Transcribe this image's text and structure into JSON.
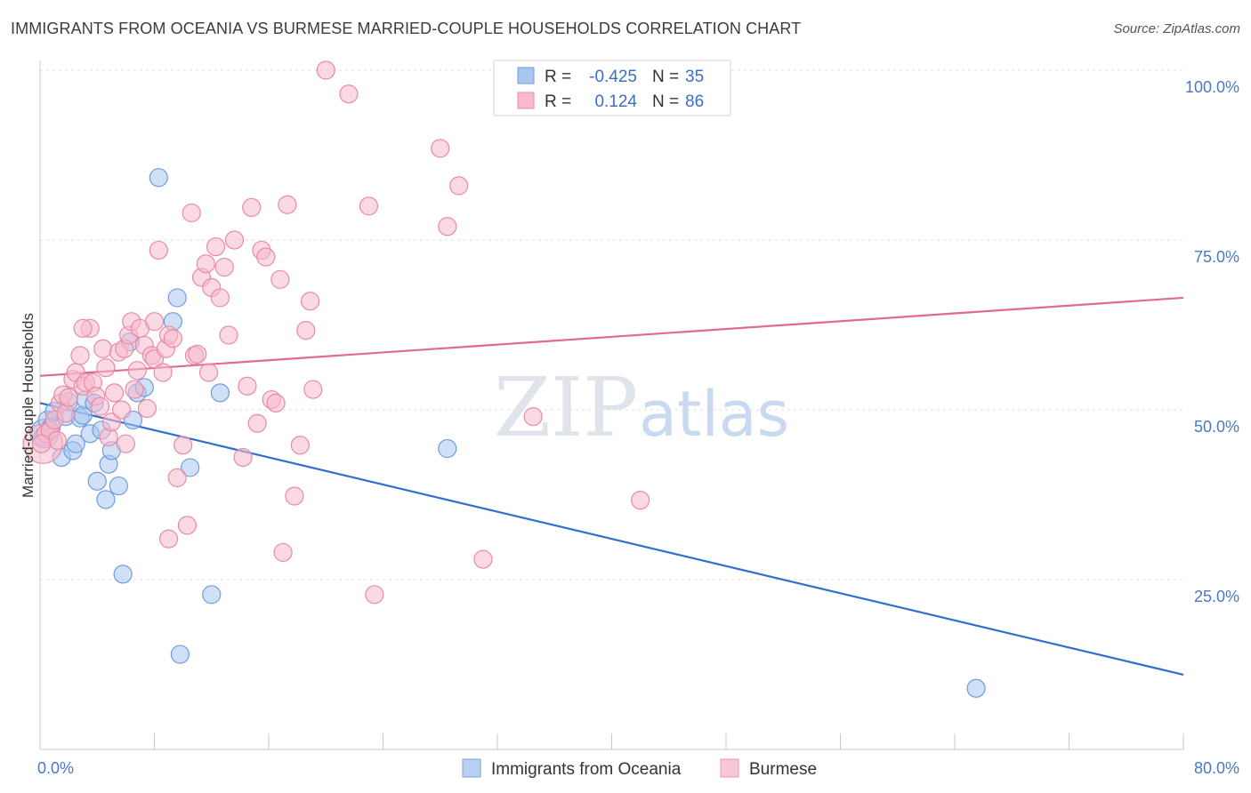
{
  "header": {
    "title": "IMMIGRANTS FROM OCEANIA VS BURMESE MARRIED-COUPLE HOUSEHOLDS CORRELATION CHART",
    "source": "Source: ZipAtlas.com"
  },
  "watermark": {
    "part1": "ZIP",
    "part2": "atlas"
  },
  "legend": {
    "rows": [
      {
        "r_label": "R =",
        "r_value": "-0.425",
        "n_label": "N =",
        "n_value": "35",
        "color": "#a9c6ef",
        "stroke": "#6f9be0"
      },
      {
        "r_label": "R =",
        "r_value": "0.124",
        "n_label": "N =",
        "n_value": "86",
        "color": "#f7b9cc",
        "stroke": "#e88aa6"
      }
    ]
  },
  "bottom_legend": {
    "items": [
      {
        "label": "Immigrants from Oceania",
        "color": "#b9d0f2",
        "stroke": "#7aa3e0"
      },
      {
        "label": "Burmese",
        "color": "#f9c8d6",
        "stroke": "#e899b0"
      }
    ]
  },
  "chart_data": {
    "type": "scatter",
    "title": "IMMIGRANTS FROM OCEANIA VS BURMESE MARRIED-COUPLE HOUSEHOLDS CORRELATION CHART",
    "xlabel": "",
    "ylabel": "Married-couple Households",
    "xlim": [
      0,
      80
    ],
    "ylim": [
      0,
      100
    ],
    "x_tick_labels": [
      "0.0%",
      "80.0%"
    ],
    "y_tick_labels": [
      "25.0%",
      "50.0%",
      "75.0%",
      "100.0%"
    ],
    "y_ticks": [
      25,
      50,
      75,
      100
    ],
    "grid": true,
    "legend_position": "top-center",
    "series": [
      {
        "name": "Immigrants from Oceania",
        "color": "#6f9be0",
        "fill": "#a9c6ef",
        "trend": {
          "x": [
            0,
            80
          ],
          "y": [
            51.0,
            11.0
          ],
          "color": "#2f6fd0"
        },
        "points": [
          [
            0.3,
            46.5
          ],
          [
            0.5,
            48.5
          ],
          [
            0.8,
            47.5
          ],
          [
            1.0,
            49.8
          ],
          [
            1.5,
            43.0
          ],
          [
            1.8,
            49.0
          ],
          [
            2.0,
            51.2
          ],
          [
            2.3,
            44.0
          ],
          [
            2.5,
            45.0
          ],
          [
            2.8,
            48.8
          ],
          [
            3.0,
            49.2
          ],
          [
            3.2,
            51.5
          ],
          [
            3.5,
            46.5
          ],
          [
            3.8,
            51.0
          ],
          [
            4.0,
            39.5
          ],
          [
            4.3,
            47.0
          ],
          [
            4.6,
            36.8
          ],
          [
            4.8,
            42.0
          ],
          [
            5.0,
            44.0
          ],
          [
            5.5,
            38.8
          ],
          [
            5.8,
            25.8
          ],
          [
            6.3,
            60.0
          ],
          [
            6.5,
            48.5
          ],
          [
            6.8,
            52.5
          ],
          [
            7.3,
            53.3
          ],
          [
            8.3,
            84.2
          ],
          [
            9.3,
            63.0
          ],
          [
            9.6,
            66.5
          ],
          [
            9.8,
            14.0
          ],
          [
            10.5,
            41.5
          ],
          [
            12.0,
            22.8
          ],
          [
            12.6,
            52.5
          ],
          [
            28.5,
            44.3
          ],
          [
            65.5,
            9.0
          ],
          [
            0.2,
            46.0
          ]
        ],
        "point_sizes": [
          16,
          10,
          10,
          10,
          10,
          10,
          10,
          10,
          10,
          10,
          10,
          10,
          10,
          10,
          10,
          10,
          10,
          10,
          10,
          10,
          10,
          10,
          10,
          10,
          10,
          10,
          10,
          10,
          10,
          10,
          10,
          10,
          10,
          10,
          10
        ]
      },
      {
        "name": "Burmese",
        "color": "#e88aa6",
        "fill": "#f7b9cc",
        "trend": {
          "x": [
            0,
            80
          ],
          "y": [
            55.0,
            66.5
          ],
          "color": "#e06a93"
        },
        "points": [
          [
            0.2,
            45.0
          ],
          [
            0.4,
            46.5
          ],
          [
            0.7,
            47.0
          ],
          [
            1.0,
            48.5
          ],
          [
            1.2,
            45.5
          ],
          [
            1.4,
            51.0
          ],
          [
            1.6,
            52.2
          ],
          [
            1.8,
            49.5
          ],
          [
            2.0,
            51.8
          ],
          [
            2.3,
            54.5
          ],
          [
            2.5,
            55.5
          ],
          [
            2.8,
            58.0
          ],
          [
            3.0,
            53.5
          ],
          [
            3.2,
            54.0
          ],
          [
            3.5,
            62.0
          ],
          [
            3.7,
            54.0
          ],
          [
            3.9,
            52.0
          ],
          [
            4.2,
            50.5
          ],
          [
            4.4,
            59.0
          ],
          [
            4.6,
            56.2
          ],
          [
            4.8,
            46.0
          ],
          [
            5.0,
            48.2
          ],
          [
            5.2,
            52.5
          ],
          [
            5.5,
            58.5
          ],
          [
            5.7,
            50.0
          ],
          [
            5.9,
            59.0
          ],
          [
            6.2,
            61.0
          ],
          [
            6.4,
            63.0
          ],
          [
            6.6,
            53.0
          ],
          [
            6.8,
            55.8
          ],
          [
            7.0,
            62.0
          ],
          [
            7.3,
            59.5
          ],
          [
            7.5,
            50.2
          ],
          [
            7.8,
            58.0
          ],
          [
            8.0,
            57.5
          ],
          [
            8.3,
            73.5
          ],
          [
            8.6,
            55.5
          ],
          [
            8.8,
            59.0
          ],
          [
            9.0,
            61.0
          ],
          [
            9.3,
            60.5
          ],
          [
            9.6,
            40.0
          ],
          [
            10.0,
            44.8
          ],
          [
            10.3,
            33.0
          ],
          [
            10.6,
            79.0
          ],
          [
            10.8,
            58.0
          ],
          [
            11.0,
            58.2
          ],
          [
            11.3,
            69.5
          ],
          [
            11.6,
            71.5
          ],
          [
            11.8,
            55.5
          ],
          [
            12.0,
            68.0
          ],
          [
            12.3,
            74.0
          ],
          [
            12.6,
            66.5
          ],
          [
            12.9,
            71.0
          ],
          [
            13.2,
            61.0
          ],
          [
            13.6,
            75.0
          ],
          [
            14.2,
            43.0
          ],
          [
            14.5,
            53.5
          ],
          [
            14.8,
            79.8
          ],
          [
            15.2,
            48.0
          ],
          [
            15.5,
            73.5
          ],
          [
            15.8,
            72.5
          ],
          [
            16.2,
            51.5
          ],
          [
            16.5,
            51.0
          ],
          [
            16.8,
            69.2
          ],
          [
            17.0,
            29.0
          ],
          [
            17.3,
            80.2
          ],
          [
            17.8,
            37.3
          ],
          [
            18.2,
            44.8
          ],
          [
            18.6,
            61.7
          ],
          [
            18.9,
            66.0
          ],
          [
            19.1,
            53.0
          ],
          [
            20.0,
            100.0
          ],
          [
            21.6,
            96.5
          ],
          [
            23.0,
            80.0
          ],
          [
            23.4,
            22.8
          ],
          [
            28.0,
            88.5
          ],
          [
            28.5,
            77.0
          ],
          [
            29.3,
            83.0
          ],
          [
            31.0,
            28.0
          ],
          [
            34.5,
            49.0
          ],
          [
            42.0,
            36.7
          ],
          [
            9.0,
            31.0
          ],
          [
            6.0,
            45.0
          ],
          [
            3.0,
            62.0
          ],
          [
            8.0,
            63.0
          ],
          [
            0.1,
            45.0
          ]
        ],
        "point_sizes": [
          22,
          10,
          10,
          10,
          10,
          10,
          10,
          10,
          10,
          10,
          10,
          10,
          10,
          10,
          10,
          10,
          10,
          10,
          10,
          10,
          10,
          10,
          10,
          10,
          10,
          10,
          10,
          10,
          10,
          10,
          10,
          10,
          10,
          10,
          10,
          10,
          10,
          10,
          10,
          10,
          10,
          10,
          10,
          10,
          10,
          10,
          10,
          10,
          10,
          10,
          10,
          10,
          10,
          10,
          10,
          10,
          10,
          10,
          10,
          10,
          10,
          10,
          10,
          10,
          10,
          10,
          10,
          10,
          10,
          10,
          10,
          10,
          10,
          10,
          10,
          10,
          10,
          10,
          10,
          10,
          10,
          10,
          10,
          10,
          10,
          10
        ]
      }
    ]
  }
}
